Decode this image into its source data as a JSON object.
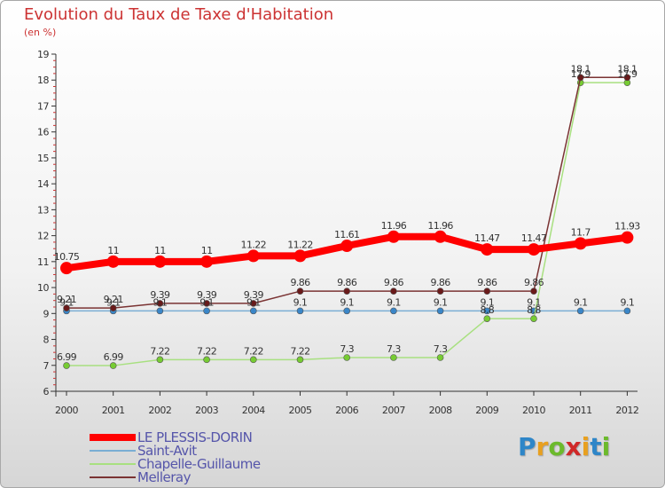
{
  "title": "Evolution du Taux de Taxe d'Habitation",
  "unit": "(en %)",
  "logo": "Proxiti",
  "chart_data": {
    "type": "line",
    "title": "Evolution du Taux de Taxe d'Habitation",
    "ylabel": "(en %)",
    "xlabel": "",
    "x": [
      "2000",
      "2001",
      "2002",
      "2003",
      "2004",
      "2005",
      "2006",
      "2007",
      "2008",
      "2009",
      "2010",
      "2011",
      "2012"
    ],
    "ylim": [
      6,
      19
    ],
    "yticks": [
      "6",
      "7",
      "8",
      "9",
      "10",
      "11",
      "12",
      "13",
      "14",
      "15",
      "16",
      "17",
      "18",
      "19"
    ],
    "grid": false,
    "legend_position": "bottom-left",
    "series": [
      {
        "name": "LE PLESSIS-DORIN",
        "color": "#ff0000",
        "marker": "#ff0000",
        "values": [
          10.75,
          11,
          11,
          11,
          11.22,
          11.22,
          11.61,
          11.96,
          11.96,
          11.47,
          11.47,
          11.7,
          11.93
        ],
        "labels": [
          "10.75",
          "11",
          "11",
          "11",
          "11.22",
          "11.22",
          "11.61",
          "11.96",
          "11.96",
          "11.47",
          "11.47",
          "11.7",
          "11.93"
        ]
      },
      {
        "name": "Saint-Avit",
        "color": "#7aaed4",
        "marker": "#3a86c8",
        "values": [
          9.1,
          9.1,
          9.1,
          9.1,
          9.1,
          9.1,
          9.1,
          9.1,
          9.1,
          9.1,
          9.1,
          9.1,
          9.1
        ],
        "labels": [
          "9.1",
          "9.1",
          "9.1",
          "9.1",
          "9.1",
          "9.1",
          "9.1",
          "9.1",
          "9.1",
          "9.1",
          "9.1",
          "9.1",
          "9.1"
        ]
      },
      {
        "name": "Chapelle-Guillaume",
        "color": "#a8e080",
        "marker": "#77cc33",
        "values": [
          6.99,
          6.99,
          7.22,
          7.22,
          7.22,
          7.22,
          7.3,
          7.3,
          7.3,
          8.8,
          8.8,
          17.9,
          17.9
        ],
        "labels": [
          "6.99",
          "6.99",
          "7.22",
          "7.22",
          "7.22",
          "7.22",
          "7.3",
          "7.3",
          "7.3",
          "8.8",
          "8.8",
          "17.9",
          "17.9"
        ]
      },
      {
        "name": "Melleray",
        "color": "#7a3333",
        "marker": "#6a1a1a",
        "values": [
          9.21,
          9.21,
          9.39,
          9.39,
          9.39,
          9.86,
          9.86,
          9.86,
          9.86,
          9.86,
          9.86,
          18.1,
          18.1
        ],
        "labels": [
          "9.21",
          "9.21",
          "9.39",
          "9.39",
          "9.39",
          "9.86",
          "9.86",
          "9.86",
          "9.86",
          "9.86",
          "9.86",
          "18.1",
          "18.1"
        ]
      }
    ]
  }
}
